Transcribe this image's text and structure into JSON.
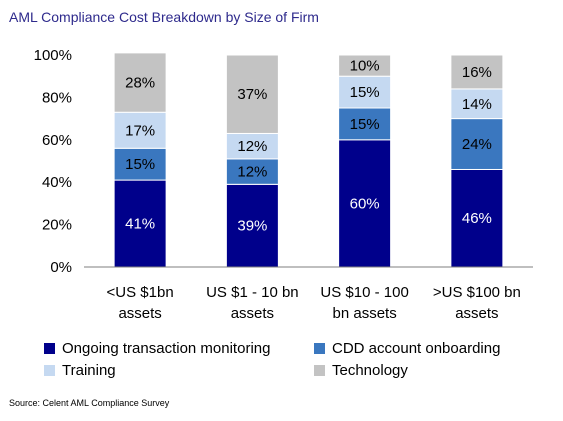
{
  "chart_data": {
    "type": "bar",
    "stacked": true,
    "title": "AML Compliance Cost Breakdown by Size of Firm",
    "categories": [
      [
        "<US $1bn",
        "assets"
      ],
      [
        "US $1 - 10 bn",
        "assets"
      ],
      [
        "US $10 - 100",
        "bn assets"
      ],
      [
        ">US $100 bn",
        "assets"
      ]
    ],
    "series": [
      {
        "name": "Ongoing transaction monitoring",
        "color": "#00008b",
        "values": [
          41,
          39,
          60,
          46
        ]
      },
      {
        "name": "CDD account onboarding",
        "color": "#3a77bf",
        "values": [
          15,
          12,
          15,
          24
        ]
      },
      {
        "name": "Training",
        "color": "#c5d9f1",
        "values": [
          17,
          12,
          15,
          14
        ]
      },
      {
        "name": "Technology",
        "color": "#c3c3c3",
        "values": [
          28,
          37,
          10,
          16
        ]
      }
    ],
    "data_label_suffix": "%",
    "ylim": [
      0,
      100
    ],
    "yticks": [
      0,
      20,
      40,
      60,
      80,
      100
    ],
    "ytick_labels": [
      "0%",
      "20%",
      "40%",
      "60%",
      "80%",
      "100%"
    ],
    "grid": false,
    "legend_position": "bottom"
  },
  "source": "Source: Celent AML Compliance Survey"
}
